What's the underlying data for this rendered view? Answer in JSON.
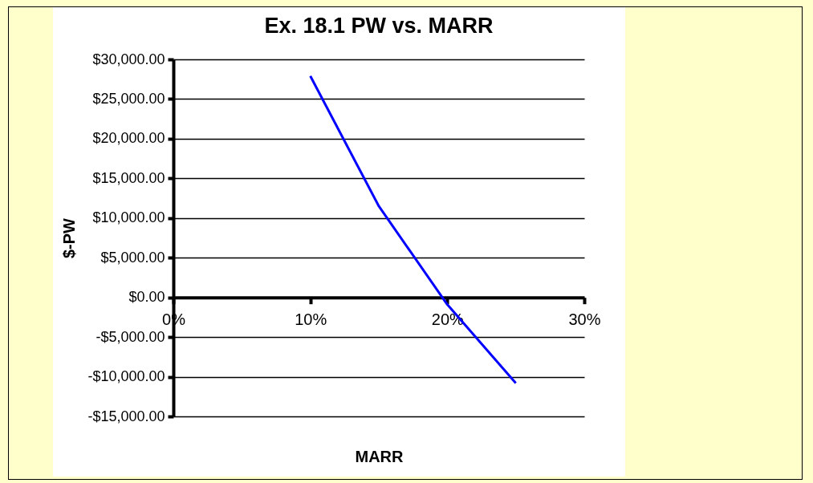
{
  "chart_data": {
    "type": "line",
    "title": "Ex. 18.1 PW vs. MARR",
    "xlabel": "MARR",
    "ylabel": "$-PW",
    "x": [
      10,
      15,
      20,
      25
    ],
    "series": [
      {
        "color": "#0000ff",
        "values": [
          27900,
          11500,
          -900,
          -10800
        ]
      }
    ],
    "xlim": [
      0,
      30
    ],
    "xticks": [
      {
        "value": 0,
        "label": "0%"
      },
      {
        "value": 10,
        "label": "10%"
      },
      {
        "value": 20,
        "label": "20%"
      },
      {
        "value": 30,
        "label": "30%"
      }
    ],
    "ylim": [
      -15000,
      30000
    ],
    "yticks": [
      {
        "value": -15000,
        "label": "-$15,000.00"
      },
      {
        "value": -10000,
        "label": "-$10,000.00"
      },
      {
        "value": -5000,
        "label": "-$5,000.00"
      },
      {
        "value": 0,
        "label": "$0.00"
      },
      {
        "value": 5000,
        "label": "$5,000.00"
      },
      {
        "value": 10000,
        "label": "$10,000.00"
      },
      {
        "value": 15000,
        "label": "$15,000.00"
      },
      {
        "value": 20000,
        "label": "$20,000.00"
      },
      {
        "value": 25000,
        "label": "$25,000.00"
      },
      {
        "value": 30000,
        "label": "$30,000.00"
      }
    ],
    "grid": "y",
    "legend": false,
    "marker": "none",
    "line_style": "solid"
  }
}
